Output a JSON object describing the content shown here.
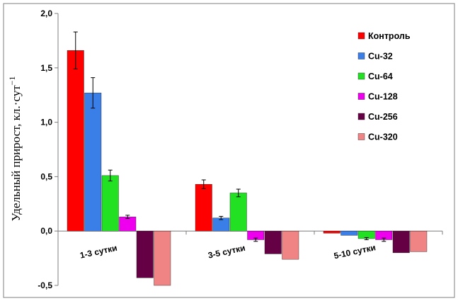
{
  "chart_data": {
    "type": "bar",
    "title": "",
    "xlabel": "",
    "ylabel": "Удельный прирост, кл.·сут",
    "ylabel_superscript": "−1",
    "ylim": [
      -0.5,
      2.0
    ],
    "y_ticks": [
      "-0,5",
      "0,0",
      "0,5",
      "1,0",
      "1,5",
      "2,0"
    ],
    "y_tick_values": [
      -0.5,
      0.0,
      0.5,
      1.0,
      1.5,
      2.0
    ],
    "categories": [
      "1-3 сутки",
      "3-5 сутки",
      "5-10 сутки"
    ],
    "legend_position": "top-right",
    "grid": false,
    "series": [
      {
        "name": "Контроль",
        "color": "#ff0000",
        "values": [
          1.66,
          0.43,
          -0.02
        ],
        "errors": [
          0.17,
          0.04,
          0.0
        ]
      },
      {
        "name": "Cu-32",
        "color": "#3a7ee8",
        "values": [
          1.27,
          0.12,
          -0.04
        ],
        "errors": [
          0.14,
          0.015,
          0.0
        ]
      },
      {
        "name": "Cu-64",
        "color": "#22e022",
        "values": [
          0.51,
          0.35,
          -0.07
        ],
        "errors": [
          0.05,
          0.035,
          0.01
        ]
      },
      {
        "name": "Cu-128",
        "color": "#ee00ee",
        "values": [
          0.13,
          -0.08,
          -0.08
        ],
        "errors": [
          0.015,
          0.015,
          0.015
        ]
      },
      {
        "name": "Cu-256",
        "color": "#660044",
        "values": [
          -0.43,
          -0.21,
          -0.2
        ],
        "errors": [
          0.0,
          0.0,
          0.0
        ]
      },
      {
        "name": "Cu-320",
        "color": "#f08484",
        "values": [
          -0.5,
          -0.26,
          -0.19
        ],
        "errors": [
          0.0,
          0.0,
          0.0
        ]
      }
    ]
  }
}
